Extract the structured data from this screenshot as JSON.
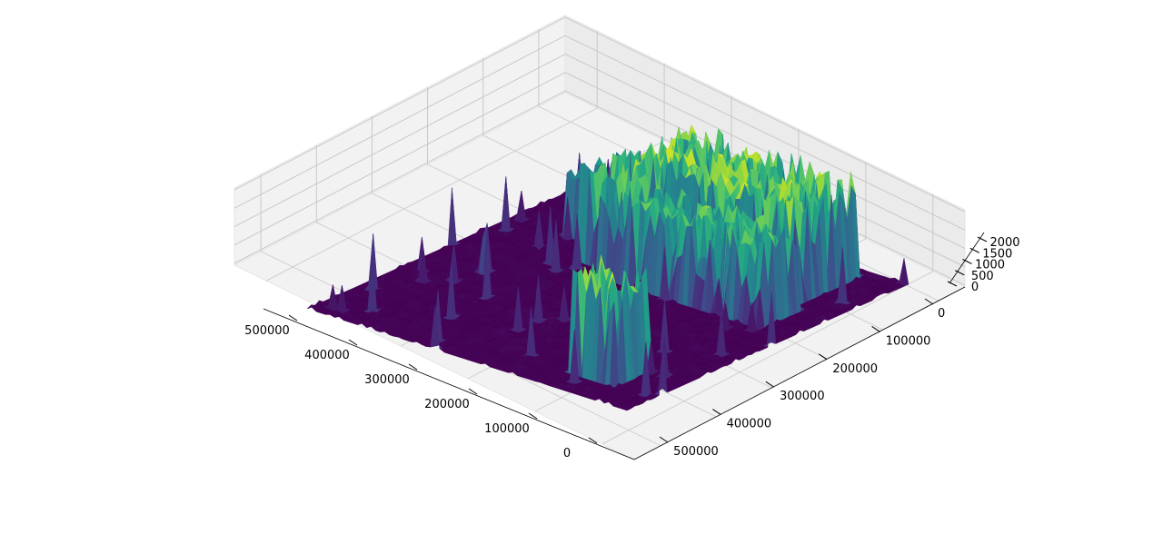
{
  "chart_data": {
    "type": "surface",
    "title": "",
    "xlabel": "",
    "ylabel": "",
    "zlabel": "",
    "colormap": "viridis",
    "grid": true,
    "xlim": [
      0,
      500000
    ],
    "ylim": [
      0,
      500000
    ],
    "zlim": [
      0,
      2000
    ],
    "xticks": [
      "0",
      "100000",
      "200000",
      "300000",
      "400000",
      "500000"
    ],
    "yticks": [
      "0",
      "100000",
      "200000",
      "300000",
      "400000",
      "500000"
    ],
    "zticks": [
      "0",
      "500",
      "1000",
      "1500",
      "2000"
    ],
    "peaks": [
      {
        "x": [
          60000,
          330000
        ],
        "y": [
          20000,
          130000
        ],
        "z": 2000
      },
      {
        "x": [
          50000,
          300000
        ],
        "y": [
          140000,
          210000
        ],
        "z": 1700
      },
      {
        "x": [
          300000,
          350000
        ],
        "y": [
          120000,
          190000
        ],
        "z": 1900
      },
      {
        "x": [
          380000,
          420000
        ],
        "y": [
          60000,
          140000
        ],
        "z": 1300
      },
      {
        "x": [
          60000,
          130000
        ],
        "y": [
          390000,
          450000
        ],
        "z": 2000
      }
    ]
  }
}
